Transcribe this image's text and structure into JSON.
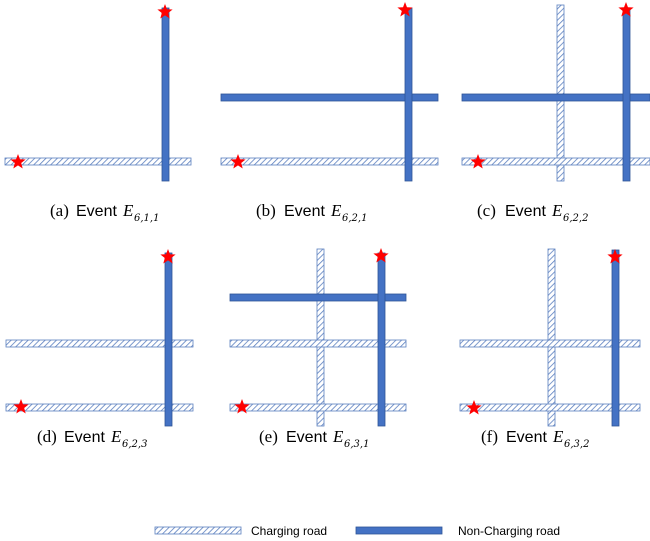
{
  "colors": {
    "charging_stroke": "#5b7fbf",
    "charging_fill": "#ffffff",
    "non_charging": "#4472c4",
    "non_charging_stroke": "#2f5597",
    "star": "#ff0000"
  },
  "panels": [
    {
      "label": "(a)",
      "event_word": "Event",
      "symbol": "E",
      "subscript": "6,1,1"
    },
    {
      "label": "(b)",
      "event_word": "Event",
      "symbol": "E",
      "subscript": "6,2,1"
    },
    {
      "label": "(c)",
      "event_word": "Event",
      "symbol": "E",
      "subscript": "6,2,2"
    },
    {
      "label": "(d)",
      "event_word": "Event",
      "symbol": "E",
      "subscript": "6,2,3"
    },
    {
      "label": "(e)",
      "event_word": "Event",
      "symbol": "E",
      "subscript": "6,3,1"
    },
    {
      "label": "(f)",
      "event_word": "Event",
      "symbol": "E",
      "subscript": "6,3,2"
    }
  ],
  "legend": {
    "charging_label": "Charging road",
    "non_charging_label": "Non-Charging road"
  }
}
